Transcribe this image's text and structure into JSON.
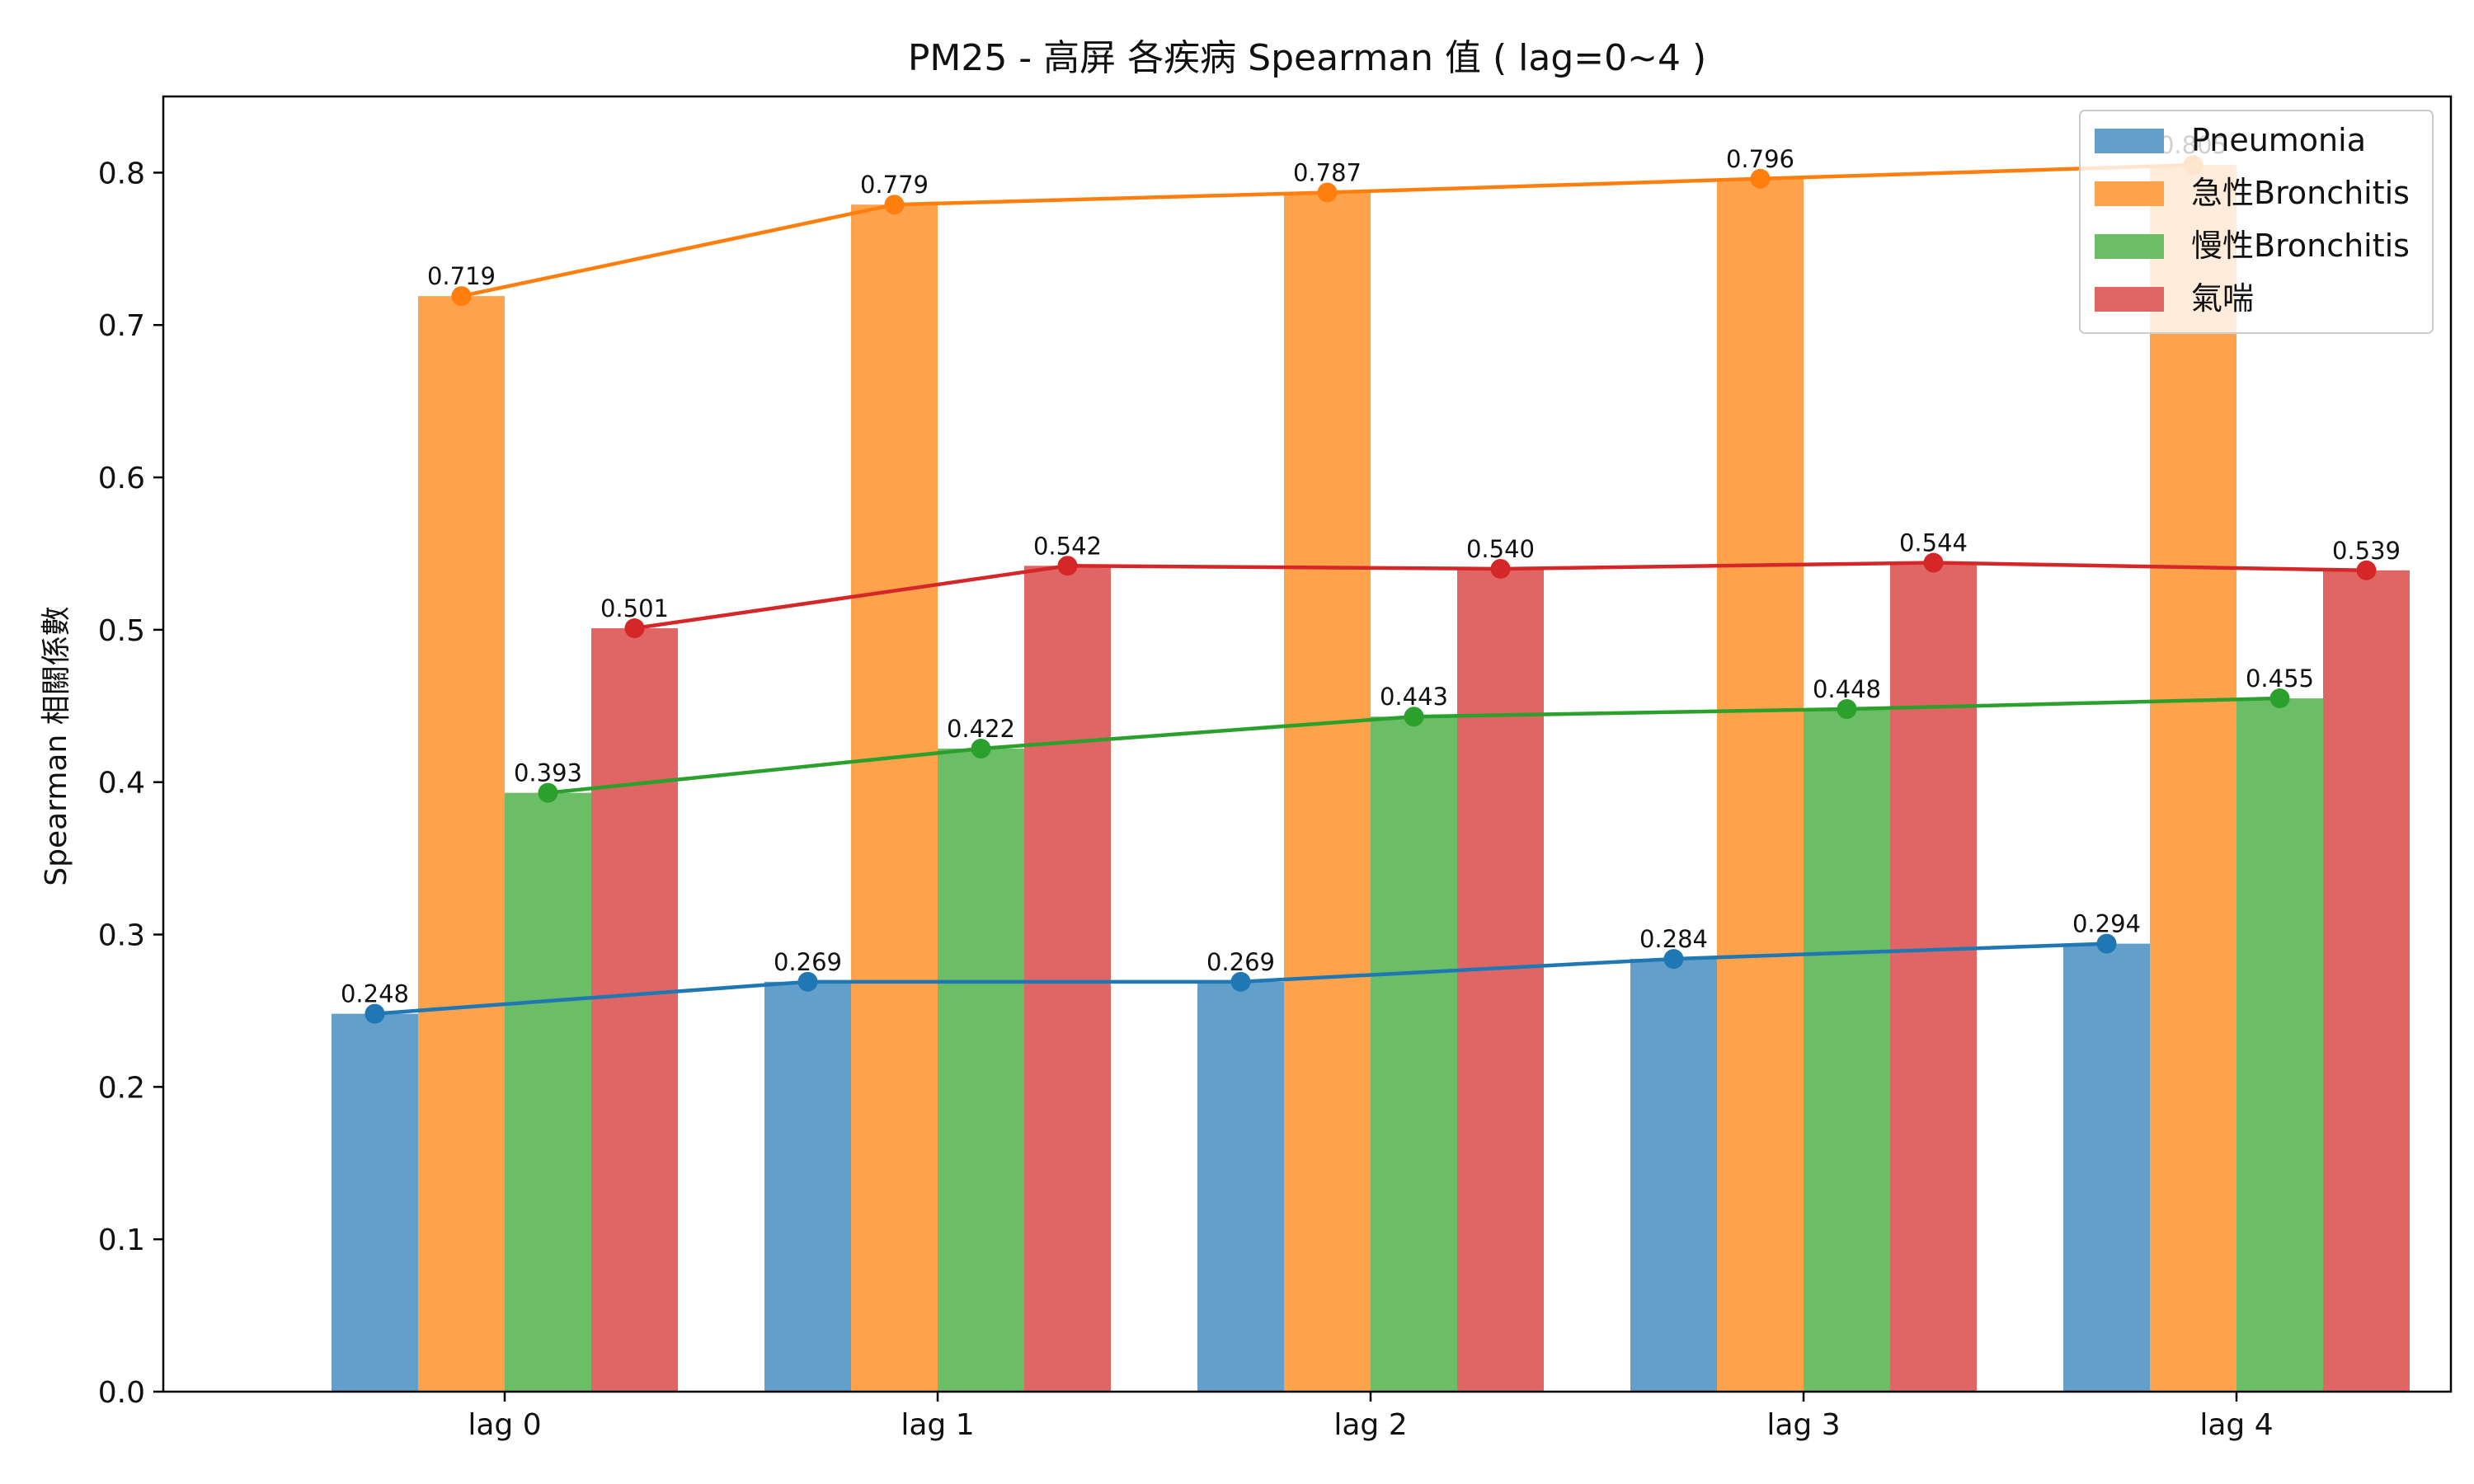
{
  "chart_data": {
    "type": "bar",
    "title": "PM25 - 高屏 各疾病 Spearman 值 ( lag=0~4 )",
    "xlabel": "",
    "ylabel": "Spearman 相關係數",
    "categories": [
      "lag 0",
      "lag 1",
      "lag 2",
      "lag 3",
      "lag 4"
    ],
    "ylim": [
      0,
      0.85
    ],
    "yticks": [
      "0.0",
      "0.1",
      "0.2",
      "0.3",
      "0.4",
      "0.5",
      "0.6",
      "0.7",
      "0.8"
    ],
    "grid": false,
    "legend_position": "top-right",
    "overlay": "line-with-markers",
    "series": [
      {
        "name": "Pneumonia",
        "values": [
          0.248,
          0.269,
          0.269,
          0.284,
          0.294
        ],
        "labels": [
          "0.248",
          "0.269",
          "0.269",
          "0.284",
          "0.294"
        ],
        "bar_color": "#629fca",
        "line_color": "#1f77b4"
      },
      {
        "name": "急性Bronchitis",
        "values": [
          0.719,
          0.779,
          0.787,
          0.796,
          0.805
        ],
        "labels": [
          "0.719",
          "0.779",
          "0.787",
          "0.796",
          "0.805"
        ],
        "bar_color": "#ffa24c",
        "line_color": "#ff7f0e"
      },
      {
        "name": "慢性Bronchitis",
        "values": [
          0.393,
          0.422,
          0.443,
          0.448,
          0.455
        ],
        "labels": [
          "0.393",
          "0.422",
          "0.443",
          "0.448",
          "0.455"
        ],
        "bar_color": "#6bbd66",
        "line_color": "#2ca02c"
      },
      {
        "name": "氣喘",
        "values": [
          0.501,
          0.542,
          0.54,
          0.544,
          0.539
        ],
        "labels": [
          "0.501",
          "0.542",
          "0.540",
          "0.544",
          "0.539"
        ],
        "bar_color": "#e06666",
        "line_color": "#d62728"
      }
    ]
  }
}
